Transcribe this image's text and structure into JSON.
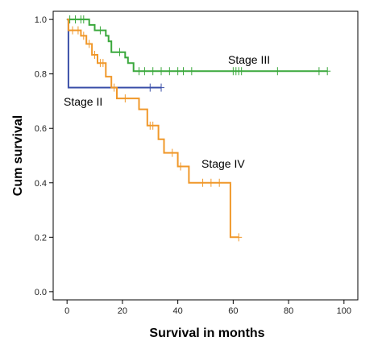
{
  "chart_data": {
    "type": "line",
    "subtype": "kaplan-meier step",
    "xlabel": "Survival in months",
    "ylabel": "Cum survival",
    "xlim": [
      -5,
      105
    ],
    "ylim": [
      -0.03,
      1.03
    ],
    "xticks": [
      "0",
      "20",
      "40",
      "60",
      "80",
      "100"
    ],
    "yticks": [
      "0.0",
      "0.2",
      "0.4",
      "0.6",
      "0.8",
      "1.0"
    ],
    "grid": false,
    "series": [
      {
        "name": "Stage II",
        "color": "#3a4fa8",
        "steps": [
          [
            0,
            1.0
          ],
          [
            0.5,
            1.0
          ],
          [
            0.5,
            0.75
          ],
          [
            34,
            0.75
          ]
        ],
        "censored": [
          [
            30,
            0.75
          ],
          [
            34,
            0.75
          ]
        ]
      },
      {
        "name": "Stage III",
        "color": "#3aa83c",
        "steps": [
          [
            0,
            1.0
          ],
          [
            8,
            1.0
          ],
          [
            8,
            0.98
          ],
          [
            10,
            0.98
          ],
          [
            10,
            0.96
          ],
          [
            14,
            0.96
          ],
          [
            14,
            0.94
          ],
          [
            15,
            0.94
          ],
          [
            15,
            0.92
          ],
          [
            16,
            0.92
          ],
          [
            16,
            0.88
          ],
          [
            21,
            0.88
          ],
          [
            21,
            0.86
          ],
          [
            22,
            0.86
          ],
          [
            22,
            0.84
          ],
          [
            24,
            0.84
          ],
          [
            24,
            0.81
          ],
          [
            94,
            0.81
          ]
        ],
        "censored": [
          [
            1,
            1.0
          ],
          [
            3,
            1.0
          ],
          [
            5,
            1.0
          ],
          [
            6,
            1.0
          ],
          [
            12,
            0.96
          ],
          [
            19,
            0.88
          ],
          [
            26,
            0.81
          ],
          [
            28,
            0.81
          ],
          [
            31,
            0.81
          ],
          [
            34,
            0.81
          ],
          [
            37,
            0.81
          ],
          [
            40,
            0.81
          ],
          [
            42,
            0.81
          ],
          [
            45,
            0.81
          ],
          [
            60,
            0.81
          ],
          [
            61,
            0.81
          ],
          [
            62,
            0.81
          ],
          [
            63,
            0.81
          ],
          [
            76,
            0.81
          ],
          [
            91,
            0.81
          ],
          [
            94,
            0.81
          ]
        ]
      },
      {
        "name": "Stage IV",
        "color": "#f0982a",
        "steps": [
          [
            0,
            1.0
          ],
          [
            0.5,
            1.0
          ],
          [
            0.5,
            0.96
          ],
          [
            5,
            0.96
          ],
          [
            5,
            0.94
          ],
          [
            7,
            0.94
          ],
          [
            7,
            0.91
          ],
          [
            9,
            0.91
          ],
          [
            9,
            0.87
          ],
          [
            11,
            0.87
          ],
          [
            11,
            0.84
          ],
          [
            14,
            0.84
          ],
          [
            14,
            0.79
          ],
          [
            16,
            0.79
          ],
          [
            16,
            0.75
          ],
          [
            18,
            0.75
          ],
          [
            18,
            0.71
          ],
          [
            26,
            0.71
          ],
          [
            26,
            0.67
          ],
          [
            29,
            0.67
          ],
          [
            29,
            0.61
          ],
          [
            33,
            0.61
          ],
          [
            33,
            0.56
          ],
          [
            35,
            0.56
          ],
          [
            35,
            0.51
          ],
          [
            40,
            0.51
          ],
          [
            40,
            0.46
          ],
          [
            44,
            0.46
          ],
          [
            44,
            0.4
          ],
          [
            59,
            0.4
          ],
          [
            59,
            0.2
          ],
          [
            62,
            0.2
          ]
        ],
        "censored": [
          [
            2,
            0.96
          ],
          [
            4,
            0.96
          ],
          [
            6,
            0.94
          ],
          [
            8,
            0.91
          ],
          [
            10,
            0.87
          ],
          [
            12,
            0.84
          ],
          [
            13,
            0.84
          ],
          [
            17,
            0.75
          ],
          [
            21,
            0.71
          ],
          [
            30,
            0.61
          ],
          [
            31,
            0.61
          ],
          [
            38,
            0.51
          ],
          [
            41,
            0.46
          ],
          [
            49,
            0.4
          ],
          [
            52,
            0.4
          ],
          [
            55,
            0.4
          ],
          [
            62,
            0.2
          ]
        ]
      }
    ]
  }
}
